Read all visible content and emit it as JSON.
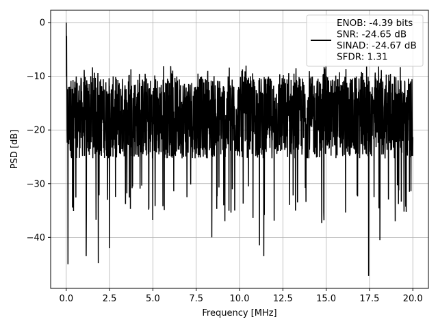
{
  "chart_data": {
    "type": "line",
    "title": "",
    "xlabel": "Frequency [MHz]",
    "ylabel": "PSD [dB]",
    "xlim": [
      -0.9,
      20.9
    ],
    "ylim": [
      -49.5,
      2.3
    ],
    "xticks": [
      0.0,
      2.5,
      5.0,
      7.5,
      10.0,
      12.5,
      15.0,
      17.5,
      20.0
    ],
    "xtick_labels": [
      "0.0",
      "2.5",
      "5.0",
      "7.5",
      "10.0",
      "12.5",
      "15.0",
      "17.5",
      "20.0"
    ],
    "yticks": [
      0,
      -10,
      -20,
      -30,
      -40
    ],
    "ytick_labels": [
      "0",
      "−10",
      "−20",
      "−30",
      "−40"
    ],
    "grid": true,
    "legend_position": "top-right",
    "line_color": "#000000",
    "series": [
      {
        "legend_lines": [
          "ENOB: -4.39 bits",
          "SNR: -24.65 dB",
          "SINAD: -24.67 dB",
          "SFDR: 1.31"
        ],
        "x_range": [
          0.0,
          20.0
        ],
        "num_points": 2048,
        "noise_floor_db": [
          -28,
          -10
        ],
        "peak_db_at_dc": 0,
        "notable_points": [
          {
            "x": 0.0,
            "y": 0.0
          },
          {
            "x": 0.02,
            "y": -2.5
          },
          {
            "x": 0.1,
            "y": -45.0
          },
          {
            "x": 1.15,
            "y": -43.5
          },
          {
            "x": 1.85,
            "y": -44.8
          },
          {
            "x": 2.5,
            "y": -42.0
          },
          {
            "x": 11.15,
            "y": -41.5
          },
          {
            "x": 11.4,
            "y": -43.5
          },
          {
            "x": 17.45,
            "y": -47.2
          },
          {
            "x": 18.1,
            "y": -40.5
          },
          {
            "x": 8.4,
            "y": -40.0
          }
        ]
      }
    ]
  }
}
